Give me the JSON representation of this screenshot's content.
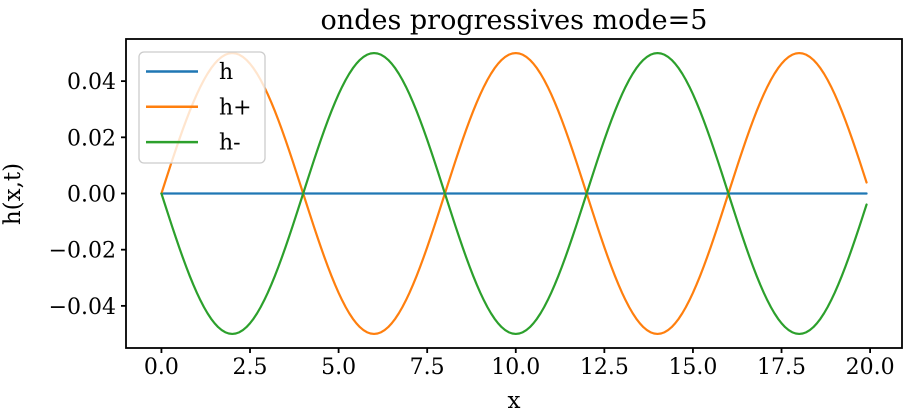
{
  "chart_data": {
    "type": "line",
    "title": "ondes progressives mode=5",
    "xlabel": "x",
    "ylabel": "h(x,t)",
    "xlim": [
      -1.0,
      20.9
    ],
    "ylim": [
      -0.055,
      0.055
    ],
    "x_ticks": [
      0.0,
      2.5,
      5.0,
      7.5,
      10.0,
      12.5,
      15.0,
      17.5,
      20.0
    ],
    "x_tick_labels": [
      "0.0",
      "2.5",
      "5.0",
      "7.5",
      "10.0",
      "12.5",
      "15.0",
      "17.5",
      "20.0"
    ],
    "y_ticks": [
      0.04,
      0.02,
      0.0,
      -0.02,
      -0.04
    ],
    "y_tick_labels": [
      "0.04",
      "0.02",
      "0.00",
      "−0.02",
      "−0.04"
    ],
    "grid": false,
    "background_color": "#ffffff",
    "spine_color": "#000000",
    "x_sampling": {
      "start": 0.0,
      "step": 0.1,
      "points": 200,
      "end": 19.9
    },
    "series": [
      {
        "name": "h",
        "color": "#1f77b4",
        "amplitude": 0.0,
        "wavelength": 8,
        "description": "flat line at h = 0 across full x range"
      },
      {
        "name": "h+",
        "color": "#ff7f0e",
        "amplitude": 0.05,
        "wavelength": 8,
        "description": "0.05*sin(2*pi*x/8): zeros at x=0,4,8,12,16,20; maxima 0.05 at x=2,10,18; minima -0.05 at x=6,14"
      },
      {
        "name": "h-",
        "color": "#2ca02c",
        "amplitude": -0.05,
        "wavelength": 8,
        "description": "-0.05*sin(2*pi*x/8): zeros at x=0,4,8,12,16,20; maxima 0.05 at x=6,14; minima -0.05 at x=2,10,18"
      }
    ],
    "legend": {
      "location": "upper left",
      "labels": [
        "h",
        "h+",
        "h-"
      ],
      "border_color": "#cccccc",
      "fill": "rgba(255,255,255,0.8)"
    }
  }
}
